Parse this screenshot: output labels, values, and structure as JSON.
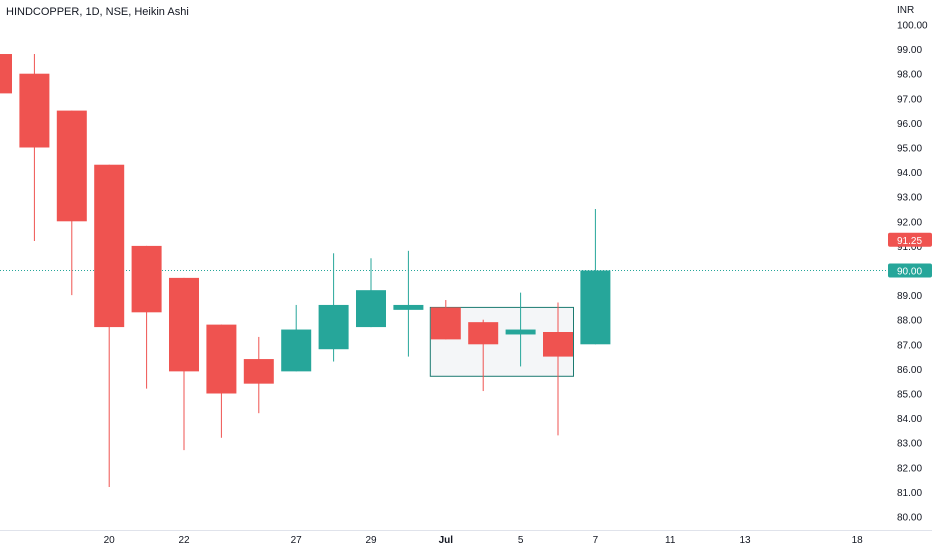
{
  "chart_title": "HINDCOPPER, 1D, NSE, Heikin Ashi",
  "colors": {
    "up": "#26a69a",
    "down": "#ef5350",
    "axis_text": "#131722",
    "grid": "#f0f3fa",
    "price_line": "#26a69a",
    "selection_border": "#1b7a70",
    "selection_fill": "#f4f6f8"
  },
  "chart_data": {
    "type": "candlestick",
    "title": "HINDCOPPER, 1D, NSE, Heikin Ashi",
    "currency": "INR",
    "ylim": [
      79.6,
      100.4
    ],
    "y_ticks": [
      "80.00",
      "81.00",
      "82.00",
      "83.00",
      "84.00",
      "85.00",
      "86.00",
      "87.00",
      "88.00",
      "89.00",
      "90.00",
      "91.00",
      "92.00",
      "93.00",
      "94.00",
      "95.00",
      "96.00",
      "97.00",
      "98.00",
      "99.00",
      "100.00"
    ],
    "x_ticks": [
      {
        "label": "20",
        "slot": 3
      },
      {
        "label": "22",
        "slot": 5
      },
      {
        "label": "27",
        "slot": 8
      },
      {
        "label": "29",
        "slot": 10
      },
      {
        "label": "Jul",
        "slot": 12,
        "bold": true
      },
      {
        "label": "5",
        "slot": 14
      },
      {
        "label": "7",
        "slot": 16
      },
      {
        "label": "11",
        "slot": 18
      },
      {
        "label": "13",
        "slot": 20
      },
      {
        "label": "18",
        "slot": 23
      }
    ],
    "candles": [
      {
        "slot": 0,
        "open": 98.8,
        "close": 97.2,
        "high": 98.8,
        "low": 97.2
      },
      {
        "slot": 1,
        "open": 98.0,
        "close": 95.0,
        "high": 98.8,
        "low": 91.2
      },
      {
        "slot": 2,
        "open": 96.5,
        "close": 92.0,
        "high": 96.5,
        "low": 89.0
      },
      {
        "slot": 3,
        "open": 94.3,
        "close": 87.7,
        "high": 94.3,
        "low": 81.2
      },
      {
        "slot": 4,
        "open": 91.0,
        "close": 88.3,
        "high": 91.0,
        "low": 85.2
      },
      {
        "slot": 5,
        "open": 89.7,
        "close": 85.9,
        "high": 89.7,
        "low": 82.7
      },
      {
        "slot": 6,
        "open": 87.8,
        "close": 85.0,
        "high": 87.8,
        "low": 83.2
      },
      {
        "slot": 7,
        "open": 86.4,
        "close": 85.4,
        "high": 87.3,
        "low": 84.2
      },
      {
        "slot": 8,
        "open": 85.9,
        "close": 87.6,
        "high": 88.6,
        "low": 85.9
      },
      {
        "slot": 9,
        "open": 86.8,
        "close": 88.6,
        "high": 90.7,
        "low": 86.3
      },
      {
        "slot": 10,
        "open": 87.7,
        "close": 89.2,
        "high": 90.5,
        "low": 87.7
      },
      {
        "slot": 11,
        "open": 88.4,
        "close": 88.6,
        "high": 90.8,
        "low": 86.5
      },
      {
        "slot": 12,
        "open": 88.5,
        "close": 87.2,
        "high": 88.8,
        "low": 87.2
      },
      {
        "slot": 13,
        "open": 87.9,
        "close": 87.0,
        "high": 88.0,
        "low": 85.1
      },
      {
        "slot": 14,
        "open": 87.4,
        "close": 87.6,
        "high": 89.1,
        "low": 86.1
      },
      {
        "slot": 15,
        "open": 87.5,
        "close": 86.5,
        "high": 88.7,
        "low": 83.3
      },
      {
        "slot": 16,
        "open": 87.0,
        "close": 90.0,
        "high": 92.5,
        "low": 87.0
      }
    ],
    "price_labels": [
      {
        "value": 91.25,
        "text": "91.25",
        "color": "#ef5350"
      },
      {
        "value": 90.0,
        "text": "90.00",
        "color": "#26a69a"
      }
    ],
    "current_price_line": 90.0,
    "selection_box": {
      "slot_from": 12,
      "slot_to": 15,
      "price_top": 88.5,
      "price_bottom": 85.7
    },
    "grid": false
  }
}
